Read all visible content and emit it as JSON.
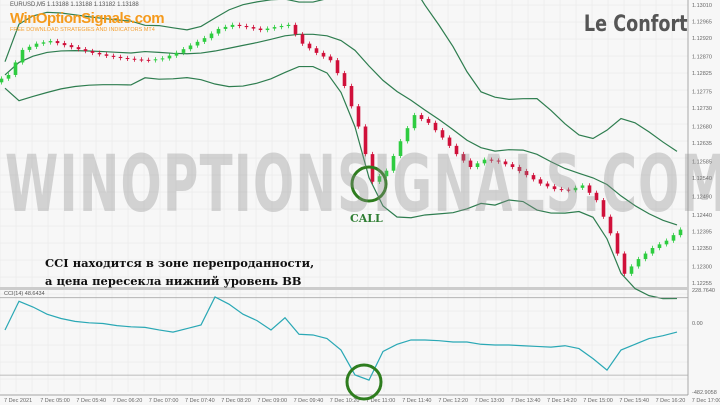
{
  "header": {
    "symbol_info": "EURUSD,M5  1.13188 1.13188 1.13182 1.13188"
  },
  "logo": {
    "name": "WinOptionSignals.com",
    "tagline": "FREE DOWNLOAD STRATEGIES AND INDICATORS MT4"
  },
  "brand": "Le Confort",
  "watermark": "WINOPTIONSIGNALS.COM",
  "annotation": {
    "line1": "CCI находится в зоне перепроданности,",
    "line2": "а цена пересекла нижний уровень BB",
    "signal": "CALL"
  },
  "colors": {
    "bull": "#2ecc40",
    "bear": "#d0103a",
    "bands": "#2e7d4f",
    "cci": "#2aa8b5",
    "circle": "#2e7d1e"
  },
  "chart_data": [
    {
      "type": "candlestick",
      "indicator": "Bollinger Bands",
      "price_ticks": [
        "1.13010",
        "1.12965",
        "1.12920",
        "1.12870",
        "1.12825",
        "1.12775",
        "1.12730",
        "1.12680",
        "1.12635",
        "1.12585",
        "1.12540",
        "1.12490",
        "1.12440",
        "1.12395",
        "1.12350",
        "1.12300",
        "1.12255"
      ],
      "ylim": [
        1.12255,
        1.1301
      ],
      "close": [
        1.1282,
        1.12888,
        1.12905,
        1.12912,
        1.12901,
        1.1289,
        1.1288,
        1.12872,
        1.12866,
        1.12862,
        1.1286,
        1.12865,
        1.1288,
        1.129,
        1.1292,
        1.12945,
        1.12956,
        1.1295,
        1.12942,
        1.1295,
        1.12956,
        1.12905,
        1.1288,
        1.1286,
        1.1279,
        1.1268,
        1.1253,
        1.1256,
        1.1264,
        1.12711,
        1.1269,
        1.1265,
        1.12605,
        1.1257,
        1.1259,
        1.12585,
        1.1257,
        1.12548,
        1.12525,
        1.1251,
        1.12507,
        1.1252,
        1.1248,
        1.1239,
        1.1228,
        1.1232,
        1.1235,
        1.1237,
        1.124
      ]
    },
    {
      "type": "line",
      "label": "CCI(14) 48.6434",
      "y_ticks": [
        "228.7640",
        "0.00",
        "-482.9058"
      ],
      "ylim": [
        -482.9058,
        228.764
      ],
      "values": [
        -50,
        150,
        110,
        60,
        30,
        10,
        0,
        -5,
        -20,
        -28,
        -32,
        -50,
        -65,
        -40,
        -15,
        180,
        130,
        60,
        15,
        -50,
        35,
        -80,
        -85,
        -110,
        -190,
        -364,
        -400,
        -200,
        -150,
        -120,
        -120,
        -125,
        -134,
        -134,
        -150,
        -155,
        -155,
        -160,
        -165,
        -170,
        -160,
        -180,
        -250,
        -330,
        -190,
        -150,
        -110,
        -90,
        -65
      ]
    }
  ],
  "time_ticks": [
    "7 Dec 2021",
    "7 Dec 05:00",
    "7 Dec 05:40",
    "7 Dec 06:20",
    "7 Dec 07:00",
    "7 Dec 07:40",
    "7 Dec 08:20",
    "7 Dec 09:00",
    "7 Dec 09:40",
    "7 Dec 10:20",
    "7 Dec 11:00",
    "7 Dec 11:40",
    "7 Dec 12:20",
    "7 Dec 13:00",
    "7 Dec 13:40",
    "7 Dec 14:20",
    "7 Dec 15:00",
    "7 Dec 15:40",
    "7 Dec 16:20",
    "7 Dec 17:00"
  ]
}
